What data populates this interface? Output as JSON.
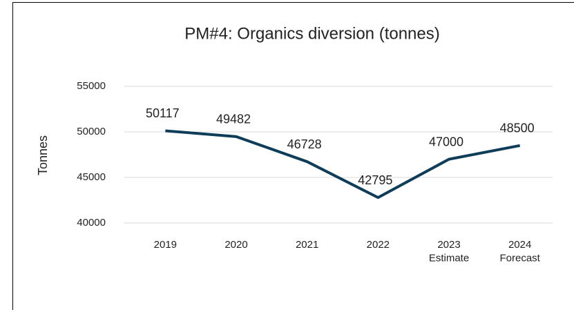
{
  "chart_data": {
    "type": "line",
    "title": "PM#4: Organics diversion (tonnes)",
    "y_label": "Tonnes",
    "categories": [
      "2019",
      "2020",
      "2021",
      "2022",
      "2023\nEstimate",
      "2024\nForecast"
    ],
    "values": [
      50117,
      49482,
      46728,
      42795,
      47000,
      48500
    ],
    "color": "#0e3d59",
    "ylim": [
      40000,
      55000
    ],
    "yticks": [
      40000,
      45000,
      50000,
      55000
    ],
    "grid": true
  }
}
